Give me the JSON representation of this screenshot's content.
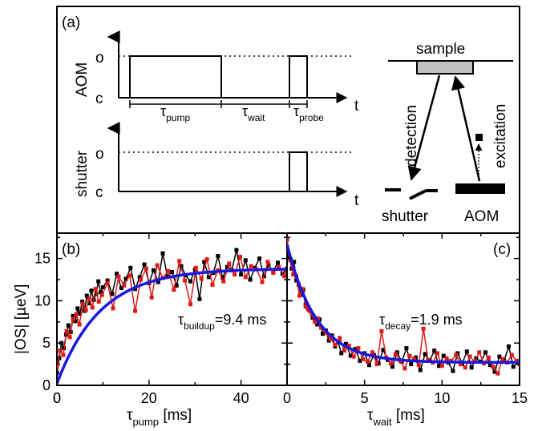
{
  "panel_a": {
    "label": "(a)",
    "aom_label": "AOM",
    "shutter_label": "shutter",
    "o_label": "o",
    "c_label": "c",
    "t_label": "t",
    "tau_symbol": "τ",
    "pump_sub": "pump",
    "wait_sub": "wait",
    "probe_sub": "probe",
    "sample_label": "sample",
    "detection_label": "detection",
    "excitation_label": "excitation",
    "shutter_box_label": "shutter",
    "aom_box_label": "AOM"
  },
  "chart_data": [
    {
      "type": "line",
      "panel": "(b)",
      "xlabel_symbol": "τ",
      "xlabel_sub": "pump",
      "xlabel_unit": " [ms]",
      "ylabel": "|OS| [µeV]",
      "xlim": [
        0,
        50
      ],
      "ylim": [
        0,
        18
      ],
      "xticks": [
        0,
        20,
        40
      ],
      "yticks": [
        0,
        5,
        10,
        15
      ],
      "annotation": {
        "symbol": "τ",
        "sub": "buildup",
        "text": "=9.4 ms"
      },
      "fit": {
        "model": "buildup",
        "tau": 9.4,
        "amplitude": 13.6,
        "offset": 0.2,
        "color": "#1818e0"
      },
      "series": [
        {
          "color": "#000000",
          "x": [
            0,
            0.5,
            1,
            1.5,
            2,
            2.5,
            3,
            3.5,
            4,
            4.5,
            5,
            5.5,
            6,
            6.5,
            7,
            7.5,
            8,
            8.5,
            9,
            9.5,
            10,
            11,
            12,
            13,
            14,
            15,
            16,
            17,
            18,
            19,
            20,
            21,
            22,
            23,
            24,
            25,
            26,
            27,
            28,
            29,
            30,
            31,
            32,
            33,
            34,
            35,
            36,
            37,
            38,
            39,
            40,
            41,
            42,
            43,
            44,
            45,
            46,
            47,
            48,
            49,
            50
          ],
          "y": [
            1.5,
            3.2,
            5.0,
            4.4,
            6.0,
            7.1,
            6.3,
            8.2,
            7.6,
            9.1,
            8.5,
            9.9,
            8.8,
            10.6,
            9.7,
            11.2,
            10.1,
            10.8,
            12.3,
            11.0,
            11.6,
            12.4,
            10.8,
            13.2,
            11.5,
            12.6,
            13.9,
            11.4,
            12.8,
            14.3,
            12.1,
            13.6,
            12.2,
            15.6,
            12.9,
            13.4,
            11.8,
            14.1,
            13.0,
            12.3,
            13.7,
            10.2,
            14.6,
            12.8,
            13.3,
            15.3,
            12.7,
            14.0,
            13.6,
            16.0,
            13.1,
            14.8,
            12.5,
            13.9,
            15.0,
            12.9,
            14.2,
            13.5,
            14.5,
            13.2,
            13.8
          ]
        },
        {
          "color": "#e01818",
          "x": [
            0,
            0.7,
            1.4,
            2.1,
            2.8,
            3.5,
            4.2,
            4.9,
            5.6,
            6.3,
            7,
            7.7,
            8.4,
            9.1,
            9.8,
            11,
            12.2,
            13.4,
            14.6,
            15.8,
            17,
            18.2,
            19.4,
            20.6,
            21.8,
            23,
            24.2,
            25.4,
            26.6,
            27.8,
            29,
            30.2,
            31.4,
            32.6,
            33.8,
            35,
            36.2,
            37.4,
            38.6,
            39.8,
            41,
            42.2,
            43.4,
            44.6,
            45.8,
            47,
            48.2,
            49.4,
            50
          ],
          "y": [
            2.2,
            4.1,
            3.6,
            6.4,
            5.7,
            7.8,
            8.4,
            7.2,
            9.6,
            8.9,
            10.3,
            9.2,
            11.4,
            9.9,
            10.7,
            12.1,
            9.1,
            12.9,
            11.8,
            13.0,
            8.8,
            12.5,
            13.8,
            10.4,
            14.2,
            12.7,
            13.5,
            11.3,
            14.7,
            12.4,
            9.6,
            13.9,
            12.6,
            14.9,
            11.9,
            13.6,
            12.3,
            14.4,
            13.1,
            15.2,
            12.8,
            14.1,
            13.7,
            12.2,
            14.6,
            13.3,
            14.0,
            12.9,
            13.4
          ]
        }
      ]
    },
    {
      "type": "line",
      "panel": "(c)",
      "xlabel_symbol": "τ",
      "xlabel_sub": "wait",
      "xlabel_unit": " [ms]",
      "ylabel": "",
      "xlim": [
        0,
        15
      ],
      "ylim": [
        0,
        18
      ],
      "xticks": [
        5,
        10,
        15
      ],
      "yticks": [
        0,
        5,
        10,
        15
      ],
      "annotation": {
        "symbol": "τ",
        "sub": "decay",
        "text": "=1.9 ms"
      },
      "fit": {
        "model": "decay",
        "tau": 1.9,
        "amplitude": 14.0,
        "offset": 2.7,
        "color": "#1818e0"
      },
      "series": [
        {
          "color": "#000000",
          "x": [
            0,
            0.15,
            0.3,
            0.45,
            0.6,
            0.75,
            0.9,
            1.05,
            1.2,
            1.35,
            1.5,
            1.65,
            1.8,
            1.95,
            2.1,
            2.3,
            2.5,
            2.7,
            2.9,
            3.1,
            3.3,
            3.5,
            3.8,
            4.1,
            4.4,
            4.7,
            5.0,
            5.3,
            5.6,
            5.9,
            6.2,
            6.5,
            6.8,
            7.1,
            7.4,
            7.7,
            8.0,
            8.3,
            8.6,
            8.9,
            9.2,
            9.5,
            9.8,
            10.1,
            10.4,
            10.7,
            11.0,
            11.3,
            11.6,
            11.9,
            12.2,
            12.5,
            12.8,
            13.1,
            13.4,
            13.7,
            14.0,
            14.3,
            14.6,
            15.0
          ],
          "y": [
            16.2,
            15.1,
            13.8,
            14.6,
            12.4,
            11.9,
            10.7,
            11.3,
            9.6,
            9.1,
            8.8,
            8.0,
            7.7,
            7.2,
            7.8,
            6.1,
            6.5,
            5.3,
            5.9,
            4.6,
            5.1,
            3.8,
            4.9,
            3.5,
            4.3,
            2.9,
            3.8,
            2.4,
            3.6,
            2.6,
            4.2,
            3.0,
            2.2,
            3.9,
            2.8,
            4.4,
            2.5,
            3.3,
            1.8,
            3.7,
            2.9,
            4.1,
            2.3,
            3.5,
            2.7,
            1.7,
            3.8,
            2.6,
            4.0,
            2.1,
            3.2,
            2.8,
            3.9,
            2.4,
            1.6,
            3.4,
            2.9,
            4.6,
            2.2,
            2.8
          ]
        },
        {
          "color": "#e01818",
          "x": [
            0,
            0.2,
            0.4,
            0.6,
            0.8,
            1.0,
            1.2,
            1.4,
            1.6,
            1.8,
            2.0,
            2.2,
            2.5,
            2.8,
            3.1,
            3.4,
            3.7,
            4.0,
            4.3,
            4.6,
            4.9,
            5.2,
            5.5,
            5.8,
            6.1,
            6.4,
            6.7,
            7.0,
            7.3,
            7.6,
            7.9,
            8.2,
            8.5,
            8.8,
            9.1,
            9.4,
            9.7,
            10.0,
            10.3,
            10.6,
            10.9,
            11.2,
            11.5,
            11.8,
            12.1,
            12.4,
            12.7,
            13.0,
            13.3,
            13.6,
            13.9,
            14.2,
            14.5,
            14.8,
            15.0
          ],
          "y": [
            17.2,
            14.8,
            13.1,
            12.9,
            10.6,
            11.4,
            9.3,
            8.9,
            8.4,
            7.5,
            7.9,
            6.8,
            6.2,
            5.5,
            4.8,
            5.6,
            4.1,
            4.7,
            3.4,
            4.4,
            3.1,
            2.8,
            3.9,
            2.5,
            6.4,
            3.3,
            2.6,
            3.7,
            2.9,
            2.0,
            3.5,
            3.1,
            2.4,
            6.7,
            3.0,
            2.7,
            3.8,
            2.3,
            3.2,
            2.9,
            3.6,
            2.5,
            2.1,
            3.4,
            2.8,
            3.9,
            2.6,
            3.3,
            2.2,
            1.4,
            3.1,
            2.7,
            3.6,
            2.9,
            2.5
          ]
        }
      ]
    }
  ]
}
